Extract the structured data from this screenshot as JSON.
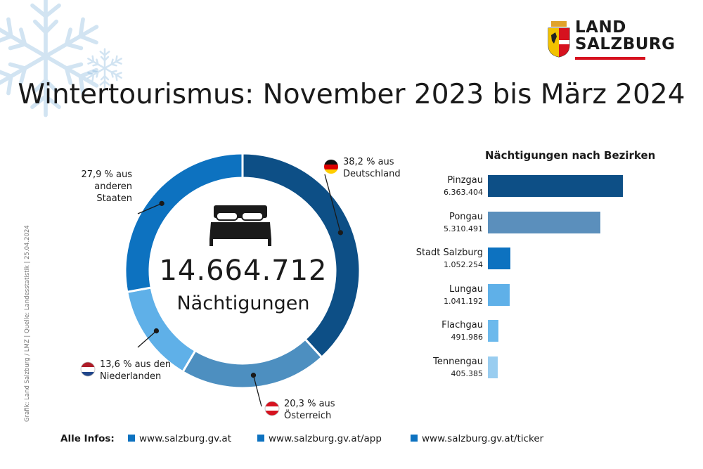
{
  "title": "Wintertourismus: November 2023 bis März 2024",
  "logo": {
    "word1": "LAND",
    "word2": "SALZBURG"
  },
  "credit": "Grafik: Land Salzburg / LMZ | Quelle: Landesstatistik | 25.04.2024",
  "colors": {
    "dark": "#0d4f86",
    "medium": "#4d8fc0",
    "bright": "#0d72c0",
    "light": "#5fb0e8",
    "lighter": "#99cdf0",
    "accent_red": "#d6121f"
  },
  "chart_data": [
    {
      "type": "pie",
      "total_value": "14.664.712",
      "total_label": "Nächtigungen",
      "slices": [
        {
          "pct": 38.2,
          "label_line1": "38,2 % aus",
          "label_line2": "Deutschland",
          "color": "#0d4f86",
          "flag": "germany-flag-icon"
        },
        {
          "pct": 20.3,
          "label_line1": "20,3 % aus",
          "label_line2": "Österreich",
          "color": "#4d8fc0",
          "flag": "austria-flag-icon"
        },
        {
          "pct": 13.6,
          "label_line1": "13,6 % aus den",
          "label_line2": "Niederlanden",
          "color": "#5fb0e8",
          "flag": "netherlands-flag-icon"
        },
        {
          "pct": 27.9,
          "label_line1": "27,9 % aus",
          "label_line2": "anderen",
          "label_line3": "Staaten",
          "color": "#0d72c0"
        }
      ]
    },
    {
      "type": "bar",
      "title": "Nächtigungen nach Bezirken",
      "orientation": "horizontal",
      "categories": [
        "Pinzgau",
        "Pongau",
        "Stadt Salzburg",
        "Lungau",
        "Flachgau",
        "Tennengau"
      ],
      "values": [
        6363404,
        5310491,
        1052254,
        1041192,
        491986,
        405385
      ],
      "value_labels": [
        "6.363.404",
        "5.310.491",
        "1.052.254",
        "1.041.192",
        "491.986",
        "405.385"
      ],
      "colors": [
        "#0d4f86",
        "#5b8fbc",
        "#0d72c0",
        "#5fb0e8",
        "#6cb9ec",
        "#99cdf0"
      ]
    }
  ],
  "footer": {
    "label": "Alle Infos:",
    "links": [
      "www.salzburg.gv.at",
      "www.salzburg.gv.at/app",
      "www.salzburg.gv.at/ticker"
    ]
  }
}
